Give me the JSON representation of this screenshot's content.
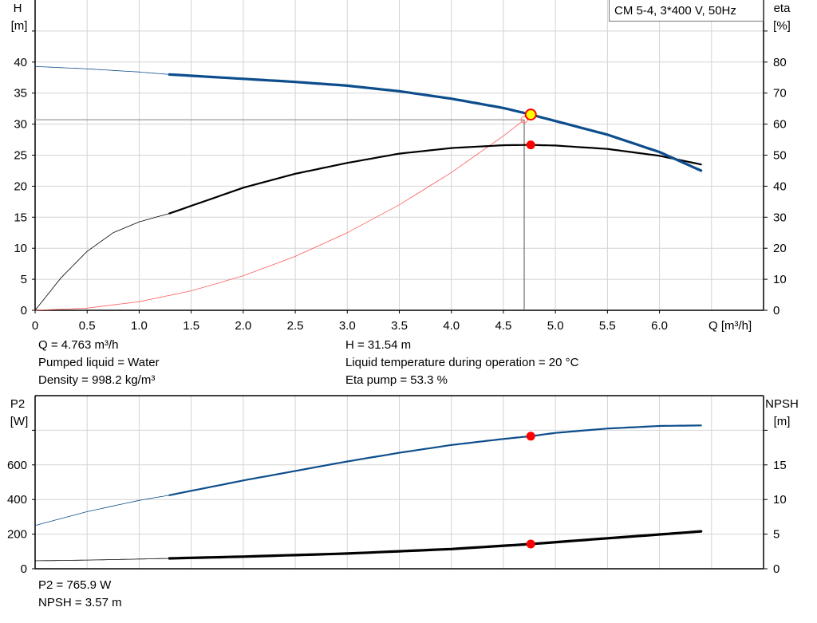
{
  "chart_data": [
    {
      "type": "line",
      "title": "CM 5-4, 3*400 V, 50Hz",
      "xlabel": "Q [m³/h]",
      "ylabel": "H\n[m]",
      "ylabel_left_name": "H",
      "ylabel_left_unit": "[m]",
      "ylabel_right_name": "eta",
      "ylabel_right_unit": "[%]",
      "xlim": [
        0,
        7.0
      ],
      "ylim_left": [
        0,
        50
      ],
      "ylim_right": [
        0,
        100
      ],
      "x_ticks": [
        "0",
        "0.5",
        "1.0",
        "1.5",
        "2.0",
        "2.5",
        "3.0",
        "3.5",
        "4.0",
        "4.5",
        "5.0",
        "5.5",
        "6.0"
      ],
      "y_left_ticks": [
        "0",
        "5",
        "10",
        "15",
        "20",
        "25",
        "30",
        "35",
        "40"
      ],
      "y_right_ticks": [
        "0",
        "10",
        "20",
        "30",
        "40",
        "50",
        "60",
        "70",
        "80"
      ],
      "grid": true,
      "series": [
        {
          "key": "H",
          "axis": "left",
          "color": "#0d4d8c",
          "x": [
            0,
            0.5,
            1.0,
            1.29,
            2.0,
            2.5,
            3.0,
            3.5,
            4.0,
            4.5,
            4.763,
            5.0,
            5.5,
            6.0,
            6.4
          ],
          "y": [
            39.3,
            38.9,
            38.4,
            38.0,
            37.3,
            36.8,
            36.2,
            35.3,
            34.1,
            32.6,
            31.54,
            30.5,
            28.3,
            25.5,
            22.5
          ]
        },
        {
          "key": "eta",
          "axis": "right",
          "color": "#000000",
          "x": [
            0,
            0.25,
            0.5,
            0.75,
            1.0,
            1.29,
            2.0,
            2.5,
            3.0,
            3.5,
            4.0,
            4.5,
            4.763,
            5.0,
            5.5,
            6.0,
            6.4
          ],
          "y": [
            0,
            10.5,
            19,
            25,
            28.5,
            31.2,
            39.5,
            44,
            47.5,
            50.5,
            52.3,
            53.2,
            53.3,
            53.1,
            52,
            49.8,
            47
          ]
        },
        {
          "key": "system",
          "axis": "left",
          "color": "#ff5a5a",
          "x": [
            0,
            0.5,
            1.0,
            1.5,
            2.0,
            2.5,
            3.0,
            3.5,
            4.0,
            4.5,
            4.7
          ],
          "y": [
            0,
            0.35,
            1.39,
            3.13,
            5.56,
            8.69,
            12.5,
            17.0,
            22.2,
            28.1,
            30.7
          ]
        }
      ],
      "duty_point": {
        "Q": 4.763,
        "H": 31.54,
        "eta": 53.3
      },
      "requested_point": {
        "Q": 4.7,
        "H": 30.7
      },
      "thin_below_Q": 1.29
    },
    {
      "type": "line",
      "ylabel_left_name": "P2",
      "ylabel_left_unit": "[W]",
      "ylabel_right_name": "NPSH",
      "ylabel_right_unit": "[m]",
      "xlim": [
        0,
        7.0
      ],
      "ylim_left": [
        0,
        1000
      ],
      "ylim_right": [
        0,
        25
      ],
      "y_left_ticks": [
        "0",
        "200",
        "400",
        "600"
      ],
      "y_right_ticks": [
        "0",
        "5",
        "10",
        "15"
      ],
      "grid": true,
      "series": [
        {
          "key": "P2",
          "axis": "left",
          "color": "#0d4d8c",
          "x": [
            0,
            0.5,
            1.0,
            1.29,
            2.0,
            2.5,
            3.0,
            3.5,
            4.0,
            4.5,
            4.763,
            5.0,
            5.5,
            6.0,
            6.4
          ],
          "y": [
            250,
            330,
            395,
            425,
            510,
            565,
            620,
            670,
            715,
            750,
            765.9,
            785,
            810,
            825,
            828
          ]
        },
        {
          "key": "NPSH",
          "axis": "right",
          "color": "#000000",
          "x": [
            0,
            0.5,
            1.0,
            1.29,
            2.0,
            3.0,
            4.0,
            4.763,
            5.5,
            6.0,
            6.4
          ],
          "y": [
            1.15,
            1.25,
            1.4,
            1.5,
            1.75,
            2.2,
            2.85,
            3.57,
            4.4,
            4.95,
            5.4
          ]
        }
      ],
      "duty_point": {
        "Q": 4.763,
        "P2": 765.9,
        "NPSH": 3.57
      },
      "thin_below_Q": 1.29
    }
  ],
  "info": {
    "q": "Q = 4.763 m³/h",
    "liquid": "Pumped liquid = Water",
    "density": "Density = 998.2 kg/m³",
    "h": "H = 31.54 m",
    "temp": "Liquid temperature during operation = 20 °C",
    "eta": "Eta pump = 53.3 %",
    "p2": "P2 = 765.9 W",
    "npsh": "NPSH = 3.57 m"
  }
}
